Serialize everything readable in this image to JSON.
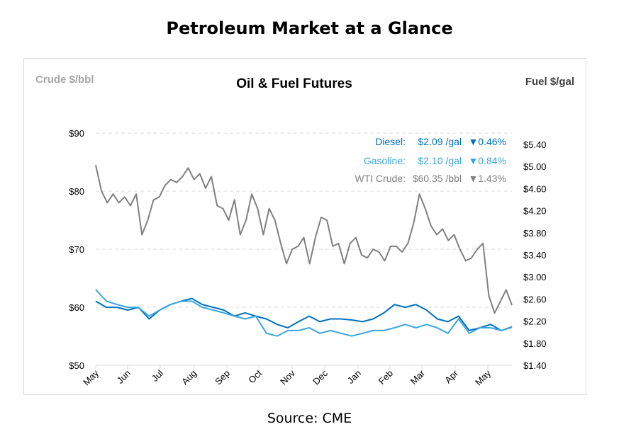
{
  "title": "Petroleum Market at a Glance",
  "source": "Source: CME",
  "chart_data": {
    "type": "line",
    "title": "Oil & Fuel Futures",
    "ylabel_left": "Crude $/bbl",
    "ylabel_right": "Fuel $/gal",
    "ylim_left": [
      50,
      90
    ],
    "ylim_right": [
      1.4,
      5.4
    ],
    "yticks_left": [
      "$50",
      "$60",
      "$70",
      "$80",
      "$90"
    ],
    "yticks_right": [
      "$1.40",
      "$1.80",
      "$2.20",
      "$2.60",
      "$3.00",
      "$3.40",
      "$3.80",
      "$4.20",
      "$4.60",
      "$5.00",
      "$5.40"
    ],
    "xticks": [
      "May",
      "Jun",
      "Jul",
      "Aug",
      "Sep",
      "Oct",
      "Nov",
      "Dec",
      "Jan",
      "Feb",
      "Mar",
      "Apr",
      "May"
    ],
    "grid": "horizontal dashed",
    "legend": [
      {
        "label": "Diesel:",
        "price": "$2.09 /gal",
        "change": "▼0.46%",
        "color": "#0070c0"
      },
      {
        "label": "Gasoline:",
        "price": "$2.10 /gal",
        "change": "▼0.84%",
        "color": "#3aa6e0"
      },
      {
        "label": "WTI Crude:",
        "price": "$60.35 /bbl",
        "change": "▼1.43%",
        "color": "#808080"
      }
    ],
    "series": [
      {
        "name": "WTI Crude",
        "axis": "left",
        "color": "#808080",
        "values": [
          84.5,
          80,
          78,
          79.5,
          78,
          79,
          77.5,
          79.5,
          72.5,
          75,
          78.5,
          79,
          81,
          82,
          81.5,
          82.5,
          84,
          82,
          83,
          80.5,
          82.5,
          77.5,
          77,
          75,
          78.5,
          72.5,
          75,
          79.5,
          77,
          72.5,
          77,
          75,
          71,
          67.5,
          70,
          70.5,
          72,
          67.5,
          72,
          75.5,
          75,
          70.5,
          71,
          67.5,
          71,
          72,
          69,
          68.5,
          70,
          69.5,
          68,
          70.5,
          70.5,
          69.5,
          71,
          74.5,
          79.5,
          77,
          74,
          72.5,
          73.5,
          71.5,
          72.5,
          70,
          68,
          68.5,
          70,
          71,
          62,
          59,
          61,
          63,
          60.35
        ]
      },
      {
        "name": "Diesel",
        "axis": "right",
        "color": "#0070c0",
        "values": [
          2.56,
          2.45,
          2.45,
          2.4,
          2.45,
          2.24,
          2.4,
          2.5,
          2.56,
          2.61,
          2.5,
          2.45,
          2.4,
          2.29,
          2.35,
          2.29,
          2.24,
          2.14,
          2.08,
          2.19,
          2.29,
          2.19,
          2.24,
          2.24,
          2.22,
          2.19,
          2.24,
          2.35,
          2.5,
          2.45,
          2.5,
          2.4,
          2.24,
          2.19,
          2.29,
          2.03,
          2.08,
          2.14,
          2.03,
          2.09
        ]
      },
      {
        "name": "Gasoline",
        "axis": "right",
        "color": "#3aa6e0",
        "values": [
          2.77,
          2.56,
          2.5,
          2.45,
          2.45,
          2.29,
          2.4,
          2.5,
          2.56,
          2.56,
          2.45,
          2.4,
          2.35,
          2.29,
          2.24,
          2.29,
          1.98,
          1.93,
          2.03,
          2.03,
          2.08,
          1.98,
          2.03,
          1.98,
          1.93,
          1.98,
          2.03,
          2.03,
          2.08,
          2.14,
          2.08,
          2.14,
          2.08,
          1.98,
          2.24,
          1.98,
          2.08,
          2.08,
          2.03,
          2.1
        ]
      }
    ]
  }
}
